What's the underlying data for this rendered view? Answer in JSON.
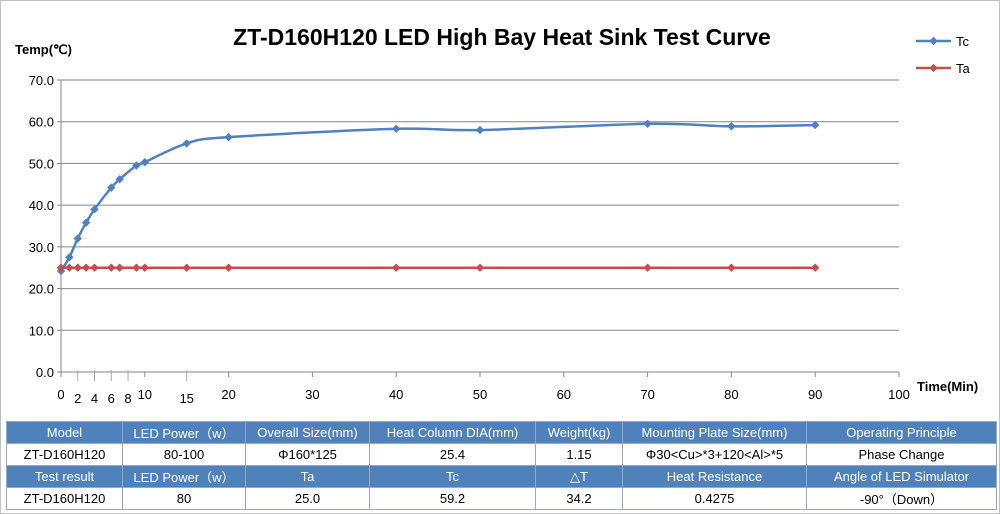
{
  "chart_data": {
    "type": "line",
    "title": "ZT-D160H120 LED High Bay Heat Sink Test Curve",
    "ylabel": "Temp(℃)",
    "xlabel": "Time(Min)",
    "ylim": [
      0,
      70
    ],
    "xlim": [
      0,
      100
    ],
    "yticks": [
      "0.0",
      "10.0",
      "20.0",
      "30.0",
      "40.0",
      "50.0",
      "60.0",
      "70.0"
    ],
    "xticks": [
      0,
      10,
      20,
      30,
      40,
      50,
      60,
      70,
      80,
      90,
      100
    ],
    "xticks_minor": [
      2,
      4,
      6,
      8,
      15
    ],
    "grid": true,
    "legend": "top-right",
    "x": [
      0,
      1,
      2,
      3,
      4,
      6,
      7,
      9,
      10,
      15,
      20,
      40,
      50,
      70,
      80,
      90
    ],
    "series": [
      {
        "name": "Tc",
        "color": "#4f81bd",
        "values": [
          24.2,
          27.5,
          32.0,
          35.8,
          39.0,
          44.2,
          46.2,
          49.5,
          50.3,
          54.8,
          56.3,
          58.3,
          58.0,
          59.5,
          58.9,
          59.2
        ]
      },
      {
        "name": "Ta",
        "color": "#c0504d",
        "values": [
          25.0,
          25.0,
          25.0,
          25.0,
          25.0,
          25.0,
          25.0,
          25.0,
          25.0,
          25.0,
          25.0,
          25.0,
          25.0,
          25.0,
          25.0,
          25.0
        ]
      }
    ]
  },
  "table": {
    "rows": [
      {
        "kind": "hdr",
        "cells": [
          "Model",
          "LED Power（w）",
          "Overall Size(mm)",
          "Heat Column DIA(mm)",
          "Weight(kg)",
          "Mounting Plate Size(mm)",
          "Operating Principle"
        ]
      },
      {
        "kind": "val",
        "cells": [
          "ZT-D160H120",
          "80-100",
          "Φ160*125",
          "25.4",
          "1.15",
          "Φ30<Cu>*3+120<Al>*5",
          "Phase Change"
        ]
      },
      {
        "kind": "hdr",
        "cells": [
          "Test result",
          "LED Power（w）",
          "Ta",
          "Tc",
          "△T",
          "Heat Resistance",
          "Angle of LED Simulator"
        ]
      },
      {
        "kind": "val",
        "cells": [
          "ZT-D160H120",
          "80",
          "25.0",
          "59.2",
          "34.2",
          "0.4275",
          "-90°（Down）"
        ]
      }
    ]
  }
}
